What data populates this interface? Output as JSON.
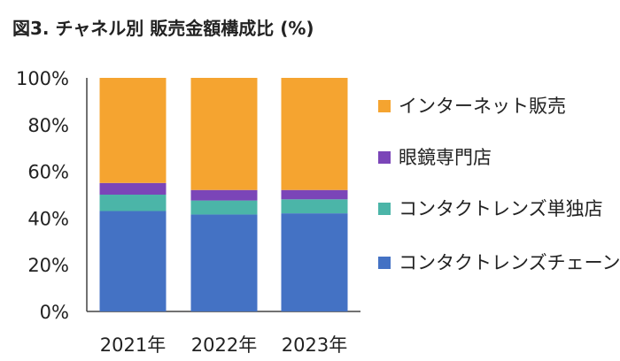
{
  "chart_data": {
    "type": "bar",
    "stacked": true,
    "title": "図3. チャネル別 販売金額構成比 (%)",
    "categories": [
      "2021年",
      "2022年",
      "2023年"
    ],
    "ylim": [
      0,
      100
    ],
    "yticks": [
      "0%",
      "20%",
      "40%",
      "60%",
      "80%",
      "100%"
    ],
    "ytick_values": [
      0,
      20,
      40,
      60,
      80,
      100
    ],
    "grid": false,
    "legend_position": "right",
    "series": [
      {
        "name": "コンタクトレンズチェーン",
        "color": "#4472C4",
        "values": [
          43,
          41.5,
          42
        ]
      },
      {
        "name": "コンタクトレンズ単独店",
        "color": "#4BB5A8",
        "values": [
          7,
          6,
          6
        ]
      },
      {
        "name": "眼鏡専門店",
        "color": "#7B45B8",
        "values": [
          5,
          4.5,
          4
        ]
      },
      {
        "name": "インターネット販売",
        "color": "#F5A430",
        "values": [
          45,
          48,
          48
        ]
      }
    ]
  }
}
